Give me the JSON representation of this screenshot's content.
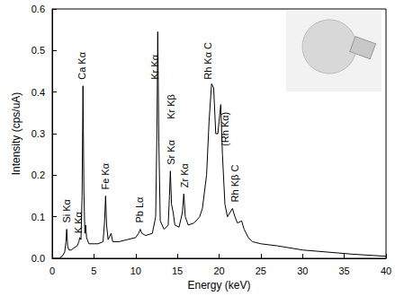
{
  "chart_data": {
    "type": "line",
    "x_label": "Energy (keV)",
    "y_label": "Intensity (cps/uA)",
    "color": "#000000",
    "grid": false,
    "xlim": [
      0,
      40
    ],
    "xticks": [
      0,
      5,
      10,
      15,
      20,
      25,
      30,
      35,
      40
    ],
    "ylim": [
      0,
      0.6
    ],
    "yticks": [
      {
        "value": 0,
        "label": "0.0"
      },
      0.1,
      0.2,
      0.3,
      0.4,
      0.5,
      0.6
    ],
    "x": [
      0,
      0.8,
      1.2,
      1.5,
      1.65,
      1.74,
      1.85,
      2.0,
      2.3,
      2.6,
      3.0,
      3.2,
      3.31,
      3.45,
      3.58,
      3.69,
      3.8,
      3.92,
      4.01,
      4.12,
      4.4,
      5.0,
      5.5,
      6.1,
      6.28,
      6.4,
      6.52,
      6.7,
      7.06,
      7.25,
      8.0,
      9.0,
      10.0,
      10.35,
      10.55,
      10.75,
      11.2,
      12.0,
      12.4,
      12.55,
      12.65,
      12.78,
      12.95,
      13.4,
      13.9,
      14.05,
      14.16,
      14.3,
      14.5,
      14.7,
      15.2,
      15.6,
      15.77,
      15.95,
      16.3,
      17.0,
      17.67,
      18.0,
      18.5,
      18.8,
      19.1,
      19.35,
      19.6,
      19.85,
      20.0,
      20.2,
      20.4,
      20.7,
      21.0,
      21.3,
      21.6,
      21.9,
      22.2,
      22.7,
      23.0,
      23.5,
      24.0,
      25.0,
      27.0,
      30.0,
      33.0,
      36.0,
      40.0
    ],
    "values": [
      0,
      0,
      0.005,
      0.015,
      0.04,
      0.07,
      0.03,
      0.02,
      0.02,
      0.025,
      0.03,
      0.04,
      0.05,
      0.045,
      0.15,
      0.415,
      0.16,
      0.06,
      0.08,
      0.05,
      0.035,
      0.035,
      0.035,
      0.04,
      0.09,
      0.15,
      0.08,
      0.045,
      0.06,
      0.04,
      0.04,
      0.045,
      0.05,
      0.06,
      0.07,
      0.06,
      0.055,
      0.06,
      0.1,
      0.3,
      0.545,
      0.28,
      0.09,
      0.07,
      0.08,
      0.15,
      0.21,
      0.13,
      0.11,
      0.08,
      0.075,
      0.11,
      0.155,
      0.1,
      0.08,
      0.085,
      0.1,
      0.12,
      0.2,
      0.33,
      0.42,
      0.41,
      0.3,
      0.3,
      0.33,
      0.37,
      0.25,
      0.13,
      0.1,
      0.11,
      0.12,
      0.1,
      0.085,
      0.09,
      0.07,
      0.05,
      0.04,
      0.035,
      0.03,
      0.02,
      0.015,
      0.01,
      0.005
    ],
    "annotations": [
      {
        "text": "Si Kα",
        "x": 1.74,
        "y": 0.085
      },
      {
        "text": "K Kα",
        "x": 3.1,
        "y": 0.06
      },
      {
        "text": "Ca Kα",
        "x": 3.6,
        "y": 0.43
      },
      {
        "text": "Fe Kα",
        "x": 6.4,
        "y": 0.165
      },
      {
        "text": "Pb Lα",
        "x": 10.5,
        "y": 0.085
      },
      {
        "text": "Kr Kα",
        "x": 12.3,
        "y": 0.43
      },
      {
        "text": "Sr Kα",
        "x": 14.2,
        "y": 0.225
      },
      {
        "text": "Kr Kβ",
        "x": 14.2,
        "y": 0.335
      },
      {
        "text": "Zr Kα",
        "x": 15.8,
        "y": 0.17
      },
      {
        "text": "Rh Kα C",
        "x": 18.7,
        "y": 0.43
      },
      {
        "text": "(Rh Kα)",
        "x": 20.7,
        "y": 0.27
      },
      {
        "text": "Rh Kβ C",
        "x": 21.9,
        "y": 0.135
      }
    ]
  }
}
